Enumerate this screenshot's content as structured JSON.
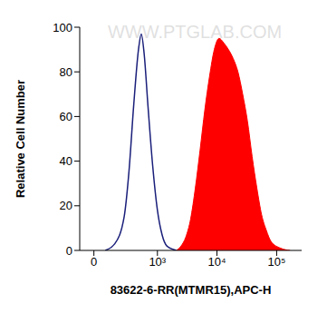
{
  "chart_data": {
    "type": "histogram",
    "xlabel": "83622-6-RR(MTMR15),APC-H",
    "ylabel": "Relative Cell Number",
    "annotations": [
      "WWW.PTGLAB.COM"
    ],
    "xlim": [
      -100,
      262144
    ],
    "xticks": [
      0,
      {
        "value": 1000,
        "label": "10³"
      },
      {
        "value": 10000,
        "label": "10⁴"
      },
      {
        "value": 100000,
        "label": "10⁵"
      }
    ],
    "ylim": [
      0,
      100
    ],
    "yticks": [
      0,
      20,
      40,
      60,
      80,
      100
    ],
    "series": [
      {
        "type": "line",
        "color": "#1a1f7a",
        "x": [
          79,
          156,
          252,
          313,
          385,
          470,
          527,
          592,
          688,
          830,
          1000,
          1200,
          1445,
          2090
        ],
        "values": [
          0,
          3,
          15,
          35,
          65,
          90,
          97,
          88,
          65,
          38,
          18,
          7,
          2,
          0
        ]
      },
      {
        "type": "area",
        "color": "#ff0000",
        "x": [
          2090,
          2510,
          3010,
          3620,
          4350,
          5220,
          6270,
          7520,
          9030,
          10840,
          13000,
          15600,
          18700,
          22500,
          27000,
          32400,
          38900,
          46600,
          56000,
          67200,
          80600,
          116600,
          168000
        ],
        "values": [
          0,
          2,
          6,
          14,
          28,
          45,
          63,
          78,
          90,
          95,
          93,
          90,
          86,
          80,
          70,
          58,
          42,
          28,
          16,
          9,
          4,
          1,
          0
        ]
      }
    ]
  }
}
